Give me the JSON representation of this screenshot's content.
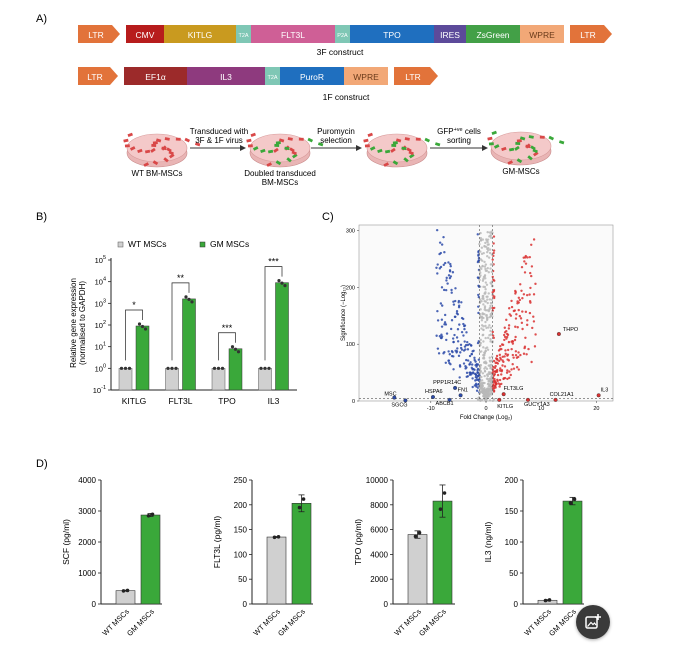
{
  "panel_labels": {
    "a": "A)",
    "b": "B)",
    "c": "C)",
    "d": "D)"
  },
  "constructs": {
    "three_f": {
      "caption": "3F construct",
      "segments": [
        {
          "label": "LTR",
          "color": "#e2733a"
        },
        {
          "label": "CMV",
          "color": "#b71c1c"
        },
        {
          "label": "KITLG",
          "color": "#c99a1f"
        },
        {
          "label": "T2A",
          "color": "#7fc7b5"
        },
        {
          "label": "FLT3L",
          "color": "#cf5f96"
        },
        {
          "label": "P2A",
          "color": "#7fc7b5"
        },
        {
          "label": "TPO",
          "color": "#1f6fbf"
        },
        {
          "label": "IRES",
          "color": "#5c4a9a"
        },
        {
          "label": "ZsGreen",
          "color": "#43a047"
        },
        {
          "label": "WPRE",
          "color": "#f2a877"
        },
        {
          "label": "LTR",
          "color": "#e2733a"
        }
      ]
    },
    "one_f": {
      "caption": "1F construct",
      "segments": [
        {
          "label": "LTR",
          "color": "#e2733a"
        },
        {
          "label": "EF1α",
          "color": "#9c2a2a"
        },
        {
          "label": "IL3",
          "color": "#8e3a7e"
        },
        {
          "label": "T2A",
          "color": "#7fc7b5"
        },
        {
          "label": "PuroR",
          "color": "#1f6fbf"
        },
        {
          "label": "WPRE",
          "color": "#f2a877"
        },
        {
          "label": "LTR",
          "color": "#e2733a"
        }
      ]
    }
  },
  "workflow": {
    "dishes": [
      "WT BM-MSCs",
      "Doubled transduced BM-MSCs",
      "GM-MSCs"
    ],
    "steps": [
      {
        "line1": "Transduced with",
        "line2": "3F & 1F virus"
      },
      {
        "line1": "Puromycin",
        "line2": "selection"
      },
      {
        "line1": "GFP",
        "sup": "+ve",
        "line1b": " cells",
        "line2": "sorting"
      }
    ]
  },
  "colors": {
    "wt": "#d0d0d0",
    "gm": "#3aa83a",
    "up": "#d93030",
    "down": "#2b4aa8",
    "ns": "#b8b8b8"
  },
  "chart_data": [
    {
      "id": "B",
      "type": "bar",
      "log_scale": true,
      "title": "",
      "xlabel": "",
      "ylabel": "Relative gene expression (normalised to GAPDH)",
      "ylim": [
        0.1,
        100000
      ],
      "yticks": [
        {
          "base": "10",
          "exp": "-1"
        },
        {
          "base": "10",
          "exp": "0"
        },
        {
          "base": "10",
          "exp": "1"
        },
        {
          "base": "10",
          "exp": "2"
        },
        {
          "base": "10",
          "exp": "3"
        },
        {
          "base": "10",
          "exp": "4"
        },
        {
          "base": "10",
          "exp": "5"
        }
      ],
      "categories": [
        "KITLG",
        "FLT3L",
        "TPO",
        "IL3"
      ],
      "series": [
        {
          "name": "WT MSCs",
          "values": [
            1,
            1,
            1,
            1
          ]
        },
        {
          "name": "GM MSCs",
          "values": [
            90,
            1600,
            8,
            9000
          ]
        }
      ],
      "significance": [
        "*",
        "**",
        "***",
        "***"
      ],
      "legend": "top"
    },
    {
      "id": "C",
      "type": "scatter",
      "title": "",
      "xlabel": "Fold Change (Log₂)",
      "ylabel": "Significance (−Log₁₀)",
      "xlim": [
        -23,
        23
      ],
      "ylim": [
        0,
        310
      ],
      "xticks": [
        "-10",
        "0",
        "10",
        "20"
      ],
      "yticks": [
        "0",
        "100",
        "200",
        "300"
      ],
      "labeled_points": [
        {
          "label": "THPO",
          "x": 13.2,
          "y": 118
        },
        {
          "label": "IL3",
          "x": 20.4,
          "y": 10
        },
        {
          "label": "COL21A1",
          "x": 12.6,
          "y": 2
        },
        {
          "label": "FLT3LG",
          "x": 3.2,
          "y": 12
        },
        {
          "label": "KITLG",
          "x": 2.4,
          "y": 2
        },
        {
          "label": "GUCY1A3",
          "x": 7.6,
          "y": 2
        },
        {
          "label": "PPP1R14C",
          "x": -5.6,
          "y": 23
        },
        {
          "label": "HSPA6",
          "x": -9.6,
          "y": 7
        },
        {
          "label": "MSC",
          "x": -16.6,
          "y": 6
        },
        {
          "label": "SGCG",
          "x": -14.6,
          "y": 1
        },
        {
          "label": "ABCB1",
          "x": -6.6,
          "y": 2
        },
        {
          "label": "FN1",
          "x": -4.6,
          "y": 10
        }
      ]
    },
    {
      "id": "D1",
      "type": "bar",
      "title": "",
      "ylabel": "SCF (pg/ml)",
      "ylim": [
        0,
        4000
      ],
      "yticks": [
        "0",
        "1000",
        "2000",
        "3000",
        "4000"
      ],
      "categories": [
        "WT MSCs",
        "GM MSCs"
      ],
      "values": [
        430,
        2870
      ],
      "errors": [
        15,
        50
      ]
    },
    {
      "id": "D2",
      "type": "bar",
      "title": "",
      "ylabel": "FLT3L (pg/ml)",
      "ylim": [
        0,
        250
      ],
      "yticks": [
        "0",
        "50",
        "100",
        "150",
        "200",
        "250"
      ],
      "categories": [
        "WT MSCs",
        "GM MSCs"
      ],
      "values": [
        135,
        203
      ],
      "errors": [
        1,
        17
      ]
    },
    {
      "id": "D3",
      "type": "bar",
      "title": "",
      "ylabel": "TPO (pg/ml)",
      "ylim": [
        0,
        10000
      ],
      "yticks": [
        "0",
        "2000",
        "4000",
        "6000",
        "8000",
        "10000"
      ],
      "categories": [
        "WT MSCs",
        "GM MSCs"
      ],
      "values": [
        5600,
        8300
      ],
      "errors": [
        300,
        1300
      ]
    },
    {
      "id": "D4",
      "type": "bar",
      "title": "",
      "ylabel": "IL3 (ng/ml)",
      "ylim": [
        0,
        200
      ],
      "yticks": [
        "0",
        "50",
        "100",
        "150",
        "200"
      ],
      "categories": [
        "WT MSCs",
        "GM MSCs"
      ],
      "values": [
        6,
        166
      ],
      "errors": [
        1,
        6
      ]
    }
  ]
}
